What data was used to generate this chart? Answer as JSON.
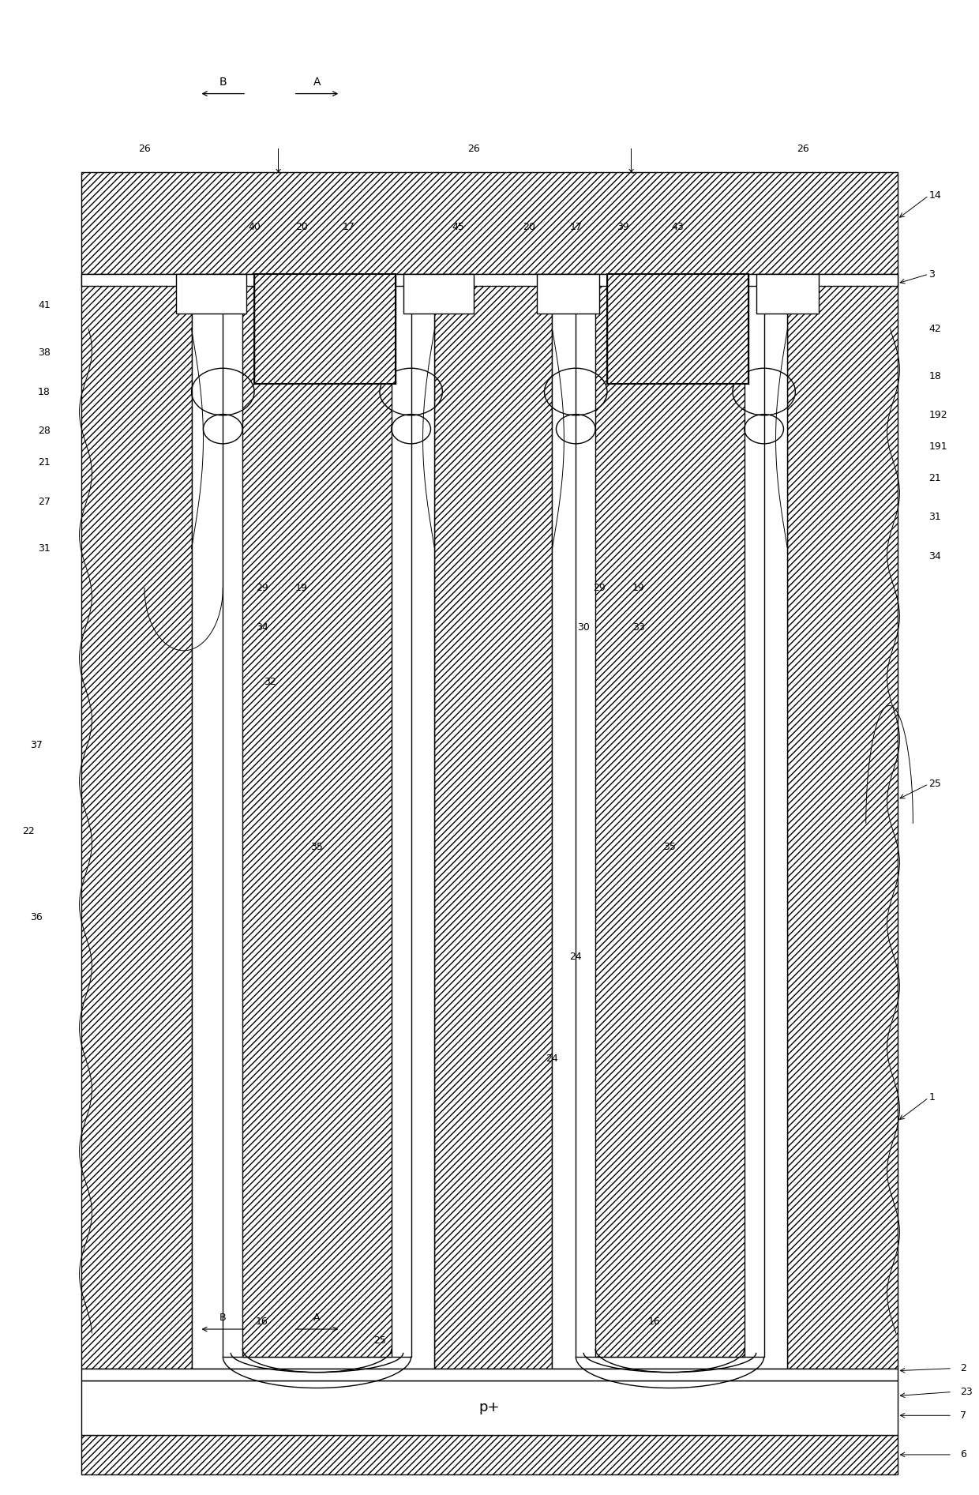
{
  "bg_color": "#ffffff",
  "fig_width": 12.4,
  "fig_height": 18.93,
  "dpi": 100,
  "xlim": [
    0,
    124
  ],
  "ylim": [
    0,
    189.3
  ]
}
